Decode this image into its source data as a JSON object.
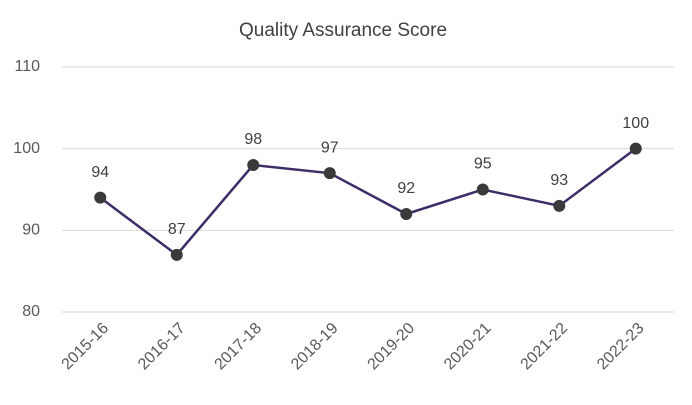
{
  "chart_data": {
    "type": "line",
    "title": "Quality Assurance Score",
    "categories": [
      "2015-16",
      "2016-17",
      "2017-18",
      "2018-19",
      "2019-20",
      "2020-21",
      "2021-22",
      "2022-23"
    ],
    "series": [
      {
        "name": "Quality Assurance Score",
        "color": "#3d2c68",
        "marker_color": "#3a3a3a",
        "values": [
          94,
          87,
          98,
          97,
          92,
          95,
          93,
          100
        ]
      }
    ],
    "ylim": [
      80,
      110
    ],
    "yticks": [
      80,
      90,
      100,
      110
    ],
    "grid": true
  }
}
